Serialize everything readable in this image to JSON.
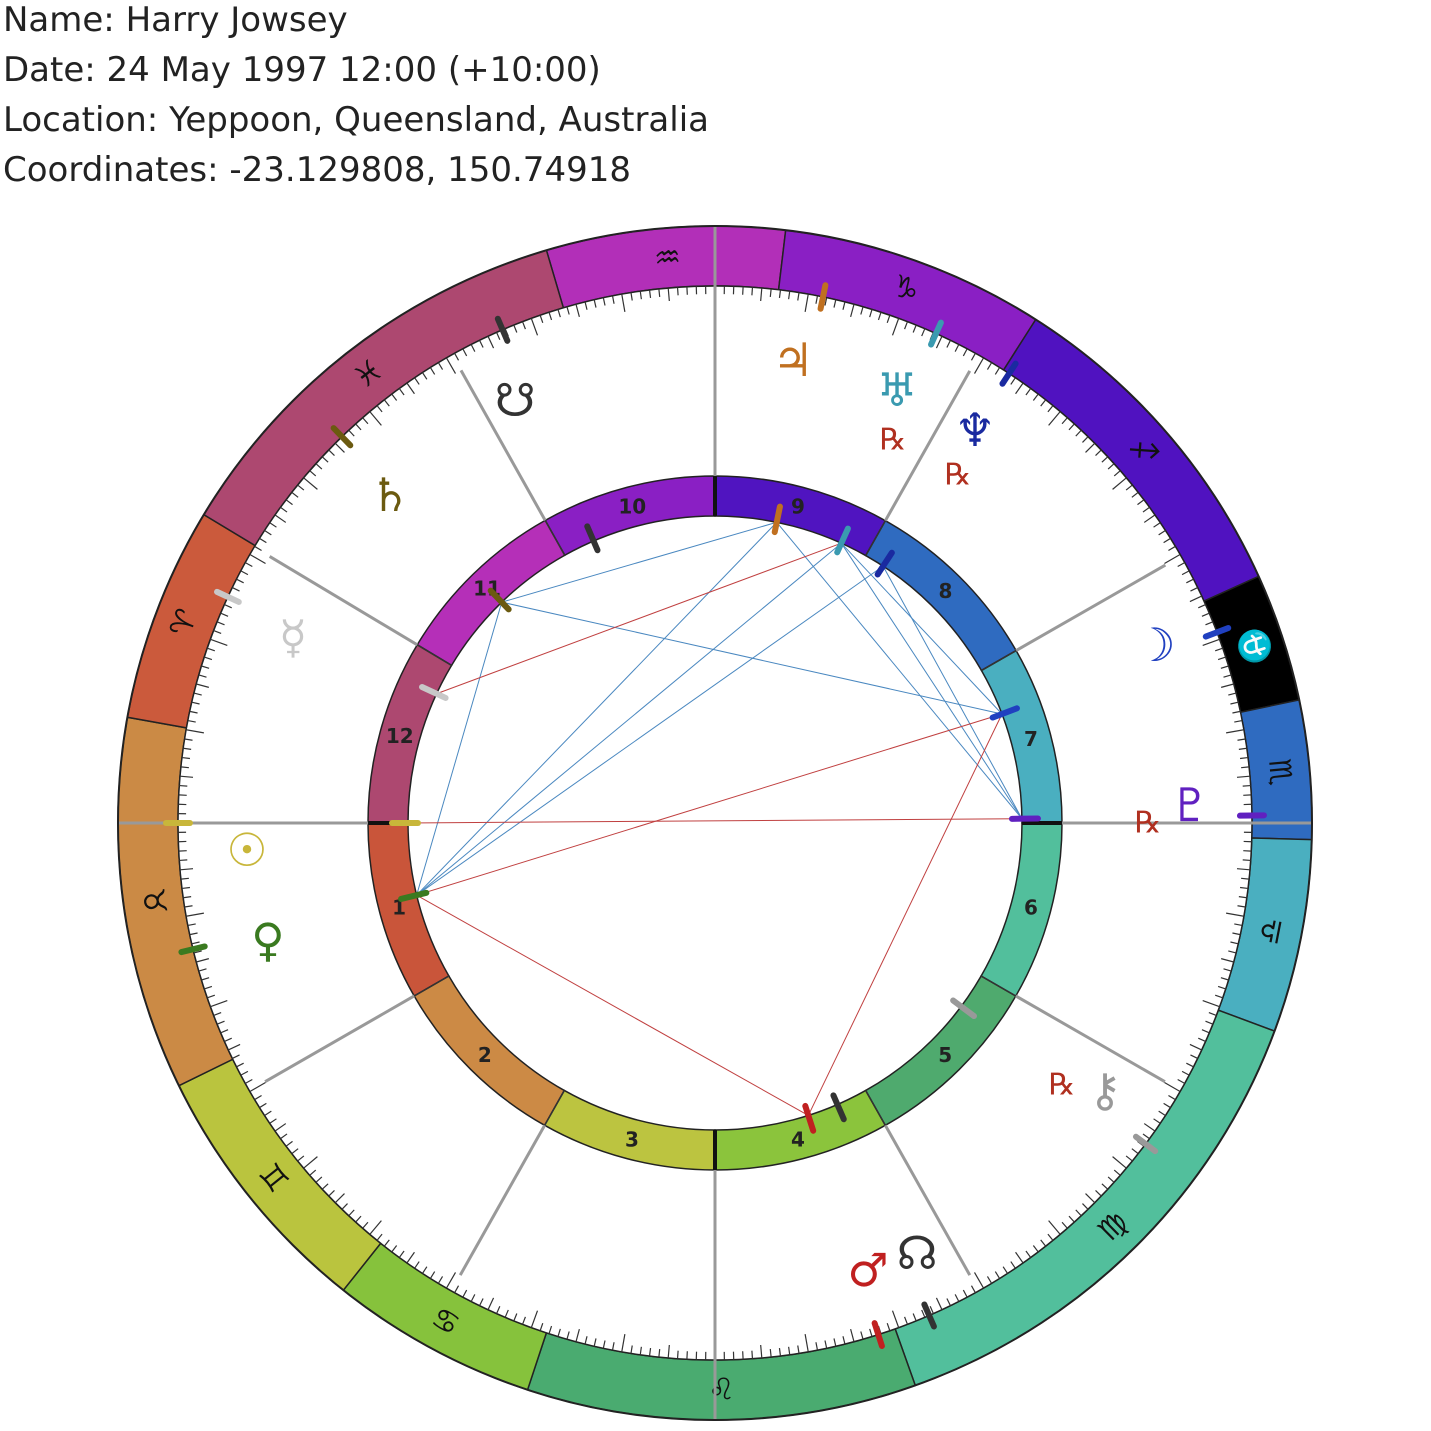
{
  "header": {
    "name": "Name: Harry Jowsey",
    "date": "Date: 24 May 1997 12:00 (+10:00)",
    "location": "Location: Yeppoon, Queensland, Australia",
    "coordinates": "Coordinates: -23.129808, 150.74918"
  },
  "signs": [
    {
      "glyph": "♒",
      "color": "#b22fb8"
    },
    {
      "glyph": "♑",
      "color": "#8a1fc4"
    },
    {
      "glyph": "♐",
      "color": "#5012c0"
    },
    {
      "glyph": "⛎",
      "color": "#000000"
    },
    {
      "glyph": "♏",
      "color": "#2f6bc0"
    },
    {
      "glyph": "♎",
      "color": "#4aafc0"
    },
    {
      "glyph": "♍",
      "color": "#52bf9c"
    },
    {
      "glyph": "♌",
      "color": "#4aab70"
    },
    {
      "glyph": "♋",
      "color": "#86c23c"
    },
    {
      "glyph": "♊",
      "color": "#bac43e"
    },
    {
      "glyph": "♉",
      "color": "#cb8a45"
    },
    {
      "glyph": "♈",
      "color": "#cb5a3c"
    },
    {
      "glyph": "♓",
      "color": "#ad4870"
    }
  ],
  "houses": [
    {
      "label": "1",
      "color": "#c9553a"
    },
    {
      "label": "2",
      "color": "#cc8a45"
    },
    {
      "label": "3",
      "color": "#bcc440"
    },
    {
      "label": "4",
      "color": "#8bc43c"
    },
    {
      "label": "5",
      "color": "#4faa6e"
    },
    {
      "label": "6",
      "color": "#52bf9c"
    },
    {
      "label": "7",
      "color": "#4aafc0"
    },
    {
      "label": "8",
      "color": "#2f6bc0"
    },
    {
      "label": "9",
      "color": "#5014c0"
    },
    {
      "label": "10",
      "color": "#8a1fc4"
    },
    {
      "label": "11",
      "color": "#b52fb8"
    },
    {
      "label": "12",
      "color": "#ad4870"
    }
  ],
  "planets": [
    {
      "glyph": "☉",
      "color": "#c8b63a"
    },
    {
      "glyph": "☽",
      "color": "#2040c0"
    },
    {
      "glyph": "☿",
      "color": "#c8c8c8"
    },
    {
      "glyph": "♀",
      "color": "#3a7a20"
    },
    {
      "glyph": "♂",
      "color": "#c02020"
    },
    {
      "glyph": "♃",
      "color": "#c07020"
    },
    {
      "glyph": "♄",
      "color": "#6b5a10"
    },
    {
      "glyph": "♅",
      "color": "#3a9ab0",
      "retrograde": "℞"
    },
    {
      "glyph": "♆",
      "color": "#1a2aa0",
      "retrograde": "℞"
    },
    {
      "glyph": "♇",
      "color": "#6020c0",
      "retrograde": "℞"
    },
    {
      "glyph": "⚷",
      "color": "#999999",
      "retrograde": "℞"
    },
    {
      "glyph": "☊",
      "color": "#333333"
    },
    {
      "glyph": "☋",
      "color": "#333333"
    }
  ]
}
